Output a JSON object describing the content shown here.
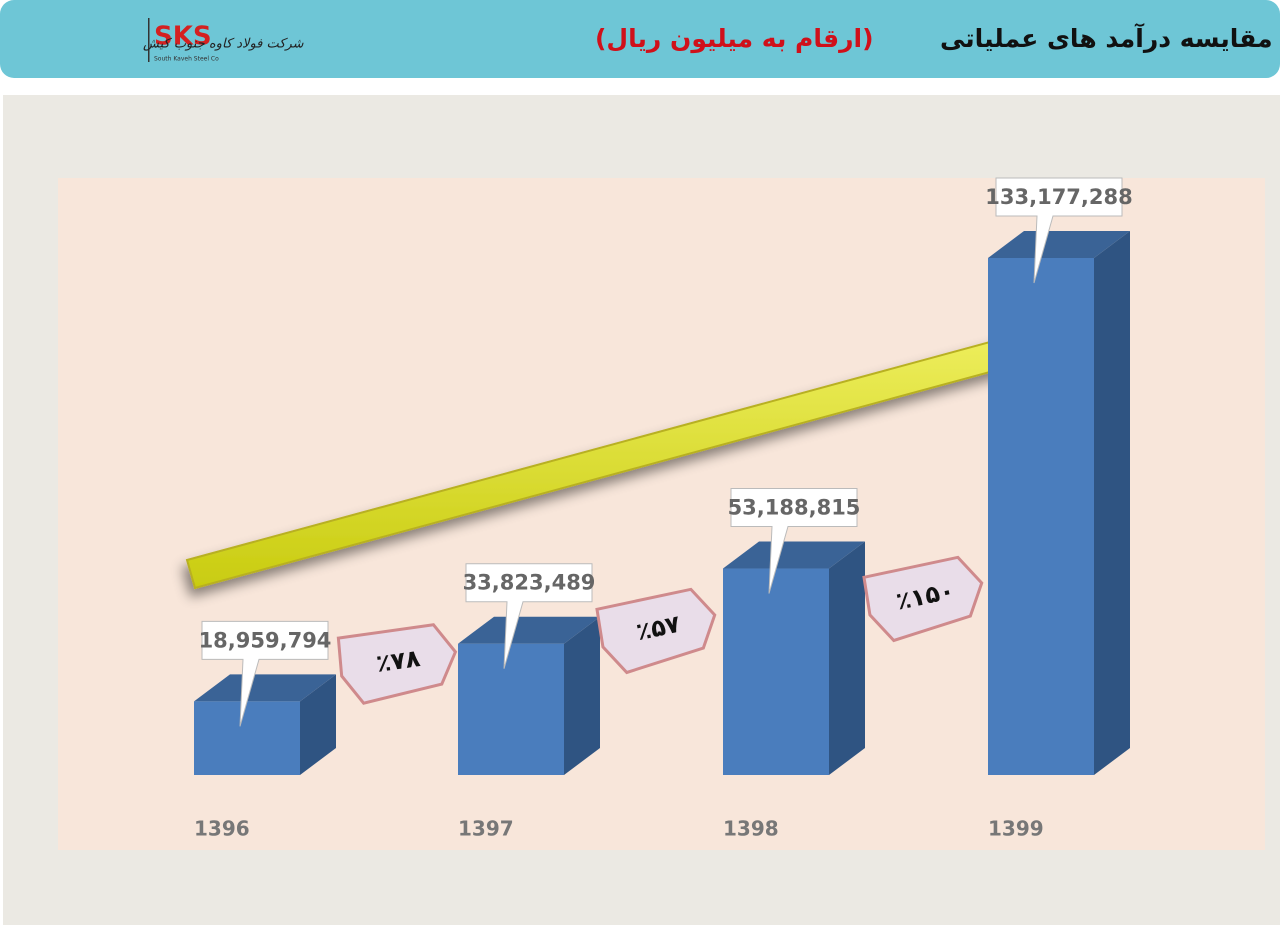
{
  "chart_data": {
    "type": "bar3d",
    "title": "مقایسه درآمد های عملیاتی",
    "subtitle": "(ارقام به میلیون ریال)",
    "logo": {
      "mark": "SKS",
      "caption": "South Kaveh Steel Co",
      "name": "شرکت فولاد کاوه جنوب کیش"
    },
    "categories": [
      "1396",
      "1397",
      "1398",
      "1399"
    ],
    "values": [
      18959794,
      33823489,
      53188815,
      133177288
    ],
    "value_labels": [
      "18,959,794",
      "33,823,489",
      "53,188,815",
      "133,177,288"
    ],
    "growth_labels": [
      "٪۷۸",
      "٪۵۷",
      "٪۱۵۰"
    ],
    "color": "#4a7dbd"
  }
}
